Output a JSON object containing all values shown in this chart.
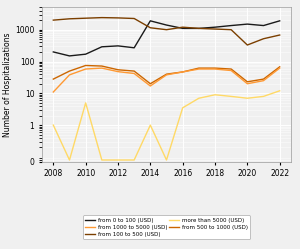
{
  "years": [
    2008,
    2009,
    2010,
    2011,
    2012,
    2013,
    2014,
    2015,
    2016,
    2017,
    2018,
    2019,
    2020,
    2021,
    2022
  ],
  "series": {
    "from 0 to 100 (USD)": {
      "color": "#1a1a1a",
      "values": [
        200,
        150,
        170,
        290,
        310,
        270,
        1900,
        1400,
        1100,
        1100,
        1200,
        1350,
        1500,
        1350,
        1900
      ]
    },
    "from 100 to 500 (USD)": {
      "color": "#7b3f00",
      "values": [
        2000,
        2200,
        2300,
        2400,
        2350,
        2250,
        1150,
        1000,
        1200,
        1100,
        1050,
        1000,
        330,
        520,
        680
      ]
    },
    "from 500 to 1000 (USD)": {
      "color": "#cc6600",
      "values": [
        28,
        50,
        75,
        72,
        55,
        50,
        20,
        40,
        47,
        62,
        62,
        58,
        23,
        28,
        68
      ]
    },
    "from 1000 to 5000 (USD)": {
      "color": "#ff9933",
      "values": [
        11,
        38,
        58,
        62,
        48,
        42,
        17,
        38,
        47,
        58,
        58,
        52,
        20,
        25,
        62
      ]
    },
    "more than 5000 (USD)": {
      "color": "#ffd966",
      "values": [
        1,
        0.08,
        5,
        0.08,
        0.08,
        0.08,
        1,
        0.08,
        3.5,
        7,
        9,
        8,
        7,
        8,
        12
      ]
    }
  },
  "ylabel": "Number of Hospitalizations",
  "ylim_log": [
    0.07,
    5000
  ],
  "xticks": [
    2008,
    2010,
    2012,
    2014,
    2016,
    2018,
    2020,
    2022
  ],
  "yticks": [
    0.07,
    1,
    10,
    100,
    1000
  ],
  "yticklabels": [
    "0",
    "1",
    "10",
    "100",
    "1000"
  ],
  "background_color": "#f0f0f0",
  "grid_color": "#ffffff",
  "legend_order": [
    "from 0 to 100 (USD)",
    "from 1000 to 5000 (USD)",
    "from 100 to 500 (USD)",
    "more than 5000 (USD)",
    "from 500 to 1000 (USD)"
  ]
}
